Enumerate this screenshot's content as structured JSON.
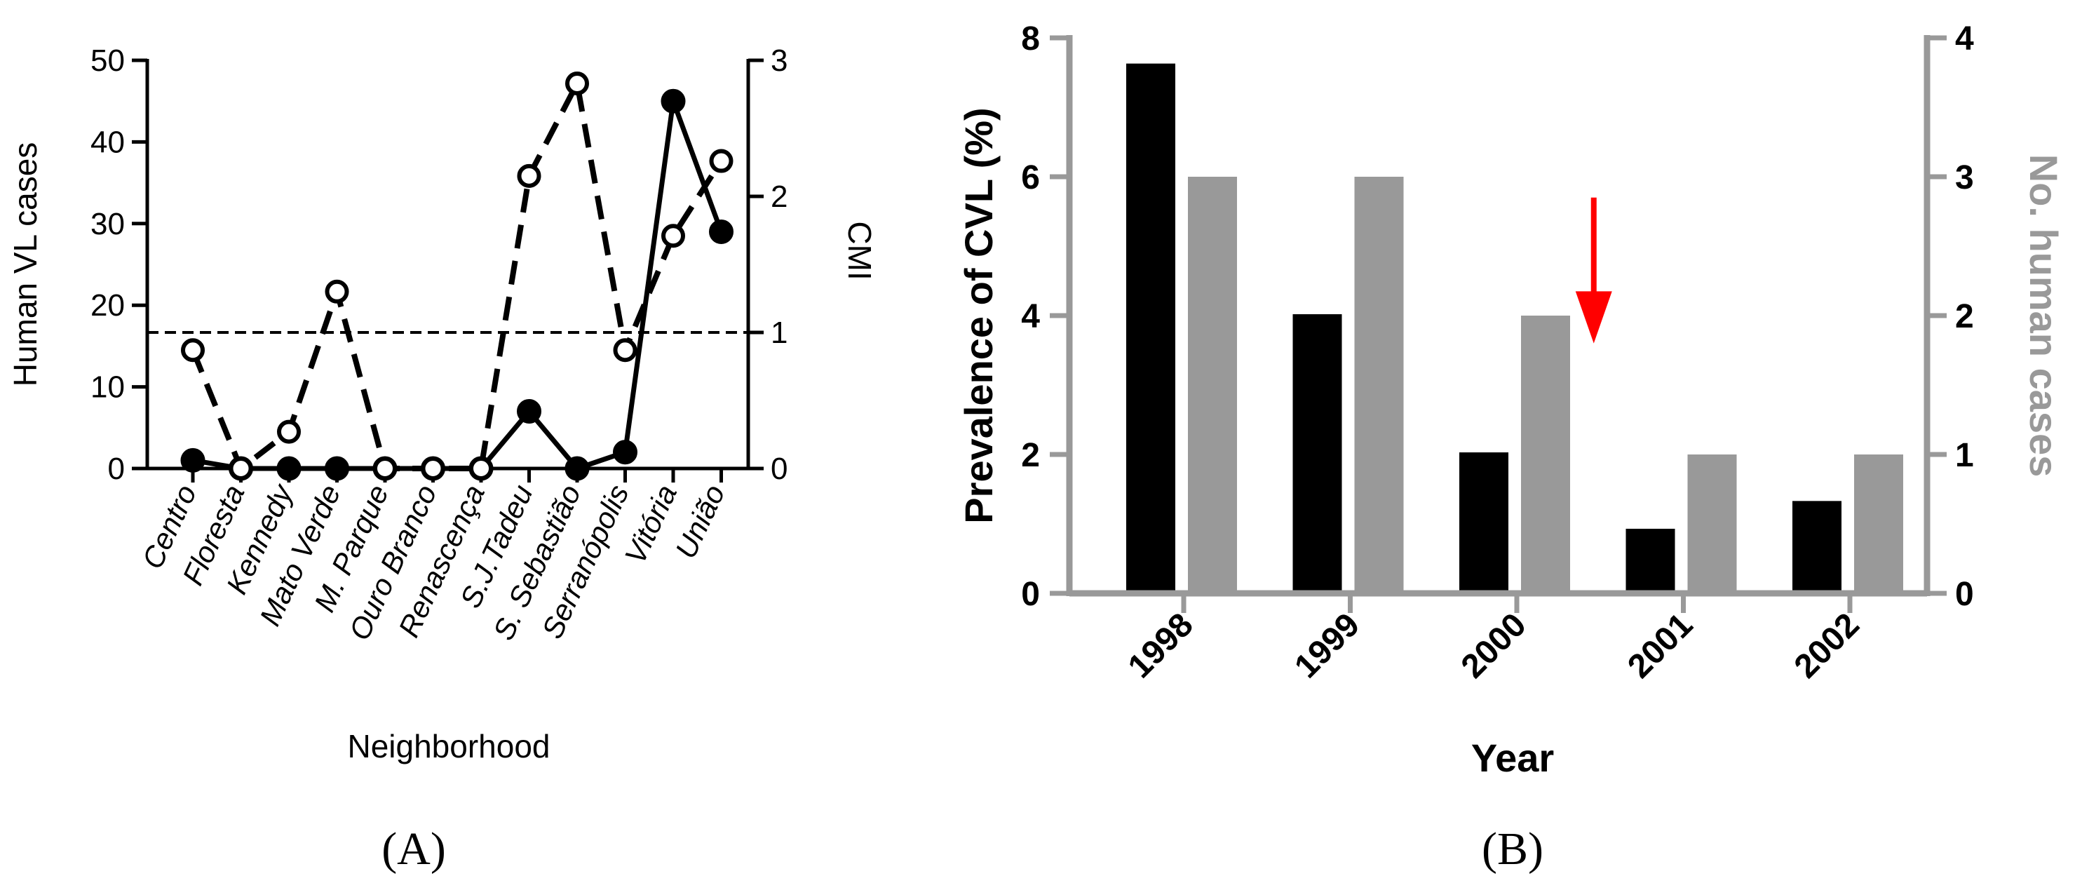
{
  "chart_data": [
    {
      "panel": "(A)",
      "type": "line",
      "xlabel": "Neighborhood",
      "ylabel": "Human VL cases",
      "y2label": "CMI",
      "ylim": [
        0,
        50
      ],
      "y2lim": [
        0,
        3
      ],
      "yticks": [
        0,
        10,
        20,
        30,
        40,
        50
      ],
      "y2ticks": [
        0,
        1,
        2,
        3
      ],
      "categories": [
        "Centro",
        "Floresta",
        "Kennedy",
        "Mato Verde",
        "M. Parque",
        "Ouro Branco",
        "Renascença",
        "S.J.Tadeu",
        "S. Sebastião",
        "Serranópolis",
        "Vitória",
        "União"
      ],
      "series": [
        {
          "name": "Human VL cases",
          "axis": "left",
          "style": "solid",
          "marker": "filled-circle",
          "values": [
            1,
            0,
            0,
            0,
            0,
            0,
            0,
            7,
            0,
            2,
            45,
            29
          ]
        },
        {
          "name": "CMI",
          "axis": "right",
          "style": "dashed",
          "marker": "open-circle",
          "values": [
            0.87,
            0,
            0.27,
            1.3,
            0,
            0,
            0,
            2.15,
            2.83,
            0.87,
            1.71,
            2.26
          ]
        }
      ],
      "reference_line": {
        "axis": "right",
        "value": 1,
        "style": "dashed"
      }
    },
    {
      "panel": "(B)",
      "type": "bar",
      "xlabel": "Year",
      "ylabel": "Prevalence of CVL (%)",
      "y2label": "No. human cases",
      "ylim": [
        0,
        8
      ],
      "y2lim": [
        0,
        4
      ],
      "yticks": [
        0,
        2,
        4,
        6,
        8
      ],
      "y2ticks": [
        0,
        1,
        2,
        3,
        4
      ],
      "categories": [
        "1998",
        "1999",
        "2000",
        "2001",
        "2002"
      ],
      "series": [
        {
          "name": "Prevalence of CVL (%)",
          "axis": "left",
          "color": "#000000",
          "values": [
            7.63,
            4.02,
            2.03,
            0.93,
            1.33
          ]
        },
        {
          "name": "No. human cases",
          "axis": "right",
          "color": "#999999",
          "values": [
            3,
            3,
            2,
            1,
            1
          ]
        }
      ],
      "annotation": {
        "type": "arrow",
        "color": "#ff0000",
        "between": [
          "2000",
          "2001"
        ]
      }
    }
  ]
}
